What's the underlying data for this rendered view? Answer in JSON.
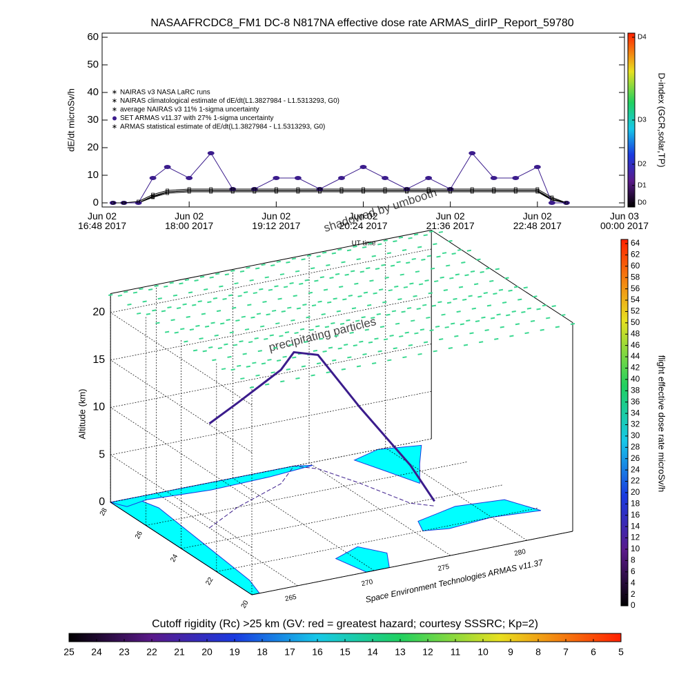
{
  "chart_data": [
    {
      "type": "line",
      "title": "NASAAFRCDC8_FM1 DC-8   N817NA effective dose rate ARMAS_dirIP_Report_59780",
      "ylabel": "dE/dt microSv/h",
      "xlabel": "UT time",
      "xlim": [
        16.8,
        24
      ],
      "xticks": [
        {
          "value": 16.8,
          "label": "Jun 02 16:48 2017"
        },
        {
          "value": 18,
          "label": "Jun 02 18:00 2017"
        },
        {
          "value": 19.2,
          "label": "Jun 02 19:12 2017"
        },
        {
          "value": 20.4,
          "label": "Jun 02 20:24 2017"
        },
        {
          "value": 21.6,
          "label": "Jun 02 21:36 2017"
        },
        {
          "value": 22.8,
          "label": "Jun 02 22:48 2017"
        },
        {
          "value": 24,
          "label": "Jun 03 00:00 2017"
        }
      ],
      "ylim": [
        -1.5,
        61.5
      ],
      "yticks": [
        0,
        10,
        20,
        30,
        40,
        50,
        60
      ],
      "x": [
        16.95,
        17.1,
        17.3,
        17.5,
        17.7,
        18.0,
        18.3,
        18.6,
        18.9,
        19.2,
        19.5,
        19.8,
        20.1,
        20.4,
        20.7,
        21.0,
        21.3,
        21.6,
        21.9,
        22.2,
        22.5,
        22.8,
        23.0,
        23.2
      ],
      "series": [
        {
          "name": "NAIRAS v3 NASA LaRC runs",
          "color": "#000000",
          "marker": "none",
          "values": [
            0,
            0,
            0,
            2,
            3.5,
            4,
            4,
            4,
            4,
            4,
            4,
            4,
            4,
            4,
            4,
            4,
            4,
            4,
            4,
            4,
            4,
            4,
            1,
            0
          ]
        },
        {
          "name": "NAIRAS climatological estimate of dE/dt(L1.3827984 - L1.5313293, G0)",
          "color": "#000000",
          "marker": "none",
          "values": [
            0,
            0,
            0,
            2.5,
            4,
            4.5,
            4.5,
            4.5,
            4.5,
            4.5,
            4.5,
            4.5,
            4.5,
            4.5,
            4.5,
            4.5,
            4.5,
            4.5,
            4.5,
            4.5,
            4.5,
            4.5,
            1.5,
            0
          ]
        },
        {
          "name": "average NAIRAS v3 11% 1-sigma uncertainty",
          "color": "#000000",
          "marker": "none",
          "values": [
            0,
            0,
            0,
            2.2,
            3.9,
            4.4,
            4.4,
            4.4,
            4.4,
            4.4,
            4.4,
            4.4,
            4.4,
            4.4,
            4.4,
            4.4,
            4.4,
            4.4,
            4.4,
            4.4,
            4.4,
            4.4,
            1.1,
            0
          ]
        },
        {
          "name": "SET ARMAS v11.37 with 27% 1-sigma uncertainty",
          "color": "#3b1c8c",
          "marker": "dot",
          "values": [
            0,
            0,
            0,
            9,
            13,
            9,
            18,
            5,
            5,
            9,
            9,
            5,
            9,
            13,
            9,
            5,
            9,
            5,
            18,
            9,
            9,
            13,
            0,
            0
          ]
        },
        {
          "name": "ARMAS statistical estimate of dE/dt(L1.3827984 - L1.5313293, G0)",
          "color": "#000000",
          "marker": "none",
          "values": [
            0,
            0,
            0.5,
            3,
            4.5,
            5,
            5,
            5,
            5,
            5,
            5,
            5,
            5,
            5,
            5,
            5,
            5,
            5,
            5,
            5,
            5,
            5,
            2,
            0
          ]
        }
      ],
      "colorbar": {
        "label": "D-index (GCR,solar,TP)",
        "ticks": [
          {
            "value": 0,
            "label": "D0"
          },
          {
            "value": 6.3,
            "label": "D1"
          },
          {
            "value": 14,
            "label": "D2"
          },
          {
            "value": 30,
            "label": "D3"
          },
          {
            "value": 60,
            "label": "D4"
          }
        ]
      }
    },
    {
      "type": "scatter3d",
      "zlabel": "Altitude (km)",
      "xlim": [
        262,
        283
      ],
      "xticks": [
        265,
        270,
        275,
        280
      ],
      "ylim": [
        20,
        28
      ],
      "yticks": [
        20,
        22,
        24,
        26,
        28
      ],
      "zlim": [
        0,
        22
      ],
      "zticks": [
        0,
        5,
        10,
        15,
        20
      ],
      "annotations": [
        "shadowed by umbooth",
        "precipitating particles",
        "Space Environment Technologies ARMAS v11.37"
      ],
      "series": [
        {
          "lon": [
            265,
            268,
            272,
            274,
            275,
            276,
            277,
            278
          ],
          "lat": [
            25,
            26,
            27,
            28,
            27.5,
            26,
            24,
            23.5
          ],
          "alt": [
            11,
            11,
            12,
            12,
            12,
            8,
            4,
            0.5
          ],
          "color": "#3b1c8c"
        }
      ],
      "colorbar": {
        "label": "flight effective dose rate microSv/h",
        "lim": [
          0,
          64
        ],
        "ticks": [
          0,
          2,
          4,
          6,
          8,
          10,
          12,
          14,
          16,
          18,
          20,
          22,
          24,
          26,
          28,
          30,
          32,
          34,
          36,
          38,
          40,
          42,
          44,
          46,
          48,
          50,
          52,
          54,
          56,
          58,
          60,
          62,
          64
        ]
      }
    },
    {
      "type": "colorbar",
      "label": "Cutoff rigidity (Rc) >25 km (GV: red = greatest hazard; courtesy SSSRC; Kp=2)",
      "lim": [
        25,
        5
      ],
      "ticks": [
        25,
        24,
        23,
        22,
        21,
        20,
        19,
        18,
        17,
        16,
        15,
        14,
        13,
        12,
        11,
        10,
        9,
        8,
        7,
        6,
        5
      ]
    }
  ]
}
